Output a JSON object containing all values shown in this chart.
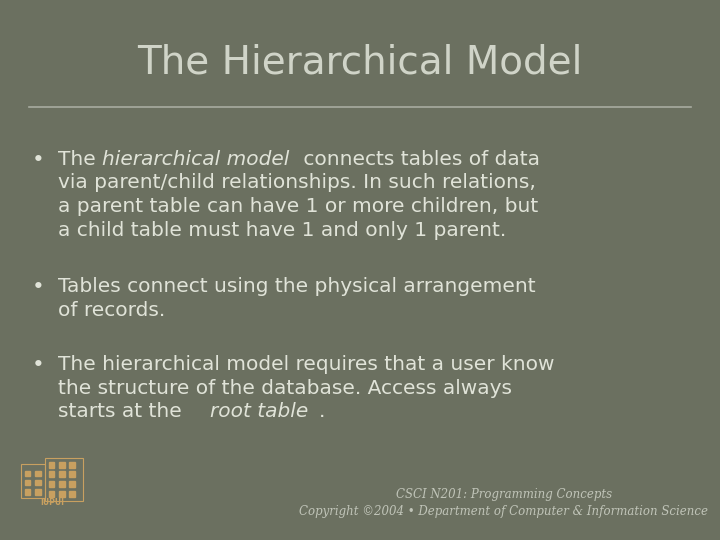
{
  "title": "The Hierarchical Model",
  "background_color": "#6b7060",
  "title_color": "#d0d4c8",
  "text_color": "#e0e3d8",
  "line_color": "#a8aca0",
  "title_fontsize": 28,
  "body_fontsize": 14.5,
  "footer_fontsize": 8.5,
  "footer_color": "#c0c4b8",
  "footer_line1": "CSCI N201: Programming Concepts",
  "footer_line2": "Copyright ©2004 • Department of Computer & Information Science",
  "logo_bg": "#8b1a1a",
  "logo_fg": "#c8a060"
}
